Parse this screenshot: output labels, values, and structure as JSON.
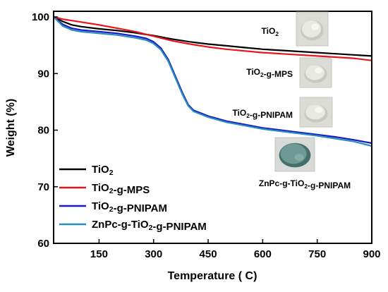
{
  "chart_data": {
    "type": "line",
    "title": "",
    "xlabel": "Temperature ( C)",
    "ylabel": "Weight (%)",
    "xlim": [
      25,
      900
    ],
    "ylim": [
      60,
      101
    ],
    "x_ticks": [
      150,
      300,
      450,
      600,
      750,
      900
    ],
    "x_tick_labels": [
      "150",
      "300",
      "450",
      "600",
      "750",
      "900"
    ],
    "y_ticks": [
      60,
      70,
      80,
      90,
      100
    ],
    "y_tick_labels": [
      "60",
      "70",
      "80",
      "90",
      "100"
    ],
    "grid": false,
    "legend_position": "bottom-left",
    "series": [
      {
        "name": "TiO2",
        "color": "#000000",
        "points": [
          [
            25,
            100
          ],
          [
            50,
            99.2
          ],
          [
            75,
            98.6
          ],
          [
            100,
            98.3
          ],
          [
            150,
            97.9
          ],
          [
            200,
            97.6
          ],
          [
            250,
            97.2
          ],
          [
            300,
            96.7
          ],
          [
            350,
            96.1
          ],
          [
            400,
            95.6
          ],
          [
            450,
            95.2
          ],
          [
            500,
            94.9
          ],
          [
            550,
            94.6
          ],
          [
            600,
            94.3
          ],
          [
            650,
            94.1
          ],
          [
            700,
            93.9
          ],
          [
            750,
            93.7
          ],
          [
            800,
            93.5
          ],
          [
            850,
            93.3
          ],
          [
            900,
            93.1
          ]
        ]
      },
      {
        "name": "TiO2-g-MPS",
        "color": "#e8141b",
        "points": [
          [
            25,
            100
          ],
          [
            50,
            99.6
          ],
          [
            100,
            99.1
          ],
          [
            150,
            98.6
          ],
          [
            200,
            98.0
          ],
          [
            250,
            97.4
          ],
          [
            300,
            96.6
          ],
          [
            350,
            95.8
          ],
          [
            400,
            95.2
          ],
          [
            450,
            94.7
          ],
          [
            500,
            94.3
          ],
          [
            550,
            94.0
          ],
          [
            600,
            93.7
          ],
          [
            650,
            93.5
          ],
          [
            700,
            93.3
          ],
          [
            750,
            93.1
          ],
          [
            800,
            92.9
          ],
          [
            850,
            92.7
          ],
          [
            900,
            92.3
          ]
        ]
      },
      {
        "name": "TiO2-g-PNIPAM",
        "color": "#1a1acc",
        "points": [
          [
            25,
            100
          ],
          [
            50,
            98.7
          ],
          [
            75,
            98.0
          ],
          [
            100,
            97.7
          ],
          [
            150,
            97.4
          ],
          [
            200,
            97.1
          ],
          [
            250,
            96.6
          ],
          [
            280,
            96.2
          ],
          [
            300,
            95.6
          ],
          [
            320,
            94.5
          ],
          [
            340,
            92.5
          ],
          [
            360,
            89.5
          ],
          [
            380,
            86.5
          ],
          [
            395,
            84.5
          ],
          [
            410,
            83.5
          ],
          [
            430,
            83.0
          ],
          [
            450,
            82.5
          ],
          [
            500,
            81.6
          ],
          [
            550,
            81.0
          ],
          [
            600,
            80.4
          ],
          [
            650,
            80.0
          ],
          [
            700,
            79.6
          ],
          [
            750,
            79.2
          ],
          [
            800,
            78.8
          ],
          [
            850,
            78.3
          ],
          [
            900,
            77.7
          ]
        ]
      },
      {
        "name": "ZnPc-g-TiO2-g-PNIPAM",
        "color": "#2a8fb8",
        "points": [
          [
            25,
            100
          ],
          [
            50,
            98.4
          ],
          [
            75,
            97.7
          ],
          [
            100,
            97.4
          ],
          [
            150,
            97.1
          ],
          [
            200,
            96.8
          ],
          [
            250,
            96.3
          ],
          [
            280,
            95.9
          ],
          [
            300,
            95.3
          ],
          [
            320,
            94.2
          ],
          [
            340,
            92.2
          ],
          [
            360,
            89.2
          ],
          [
            380,
            86.2
          ],
          [
            395,
            84.3
          ],
          [
            410,
            83.3
          ],
          [
            430,
            82.8
          ],
          [
            450,
            82.3
          ],
          [
            500,
            81.4
          ],
          [
            550,
            80.8
          ],
          [
            600,
            80.2
          ],
          [
            650,
            79.8
          ],
          [
            700,
            79.4
          ],
          [
            750,
            79.0
          ],
          [
            800,
            78.5
          ],
          [
            850,
            78.0
          ],
          [
            900,
            77.2
          ]
        ]
      }
    ],
    "legend_entries": [
      "TiO2",
      "TiO2-g-MPS",
      "TiO2-g-PNIPAM",
      "ZnPc-g-TiO2-g-PNIPAM"
    ],
    "inset_labels": [
      "TiO2",
      "TiO2-g-MPS",
      "TiO2-g-PNIPAM",
      "ZnPc-g-TiO2-g-PNIPAM"
    ]
  },
  "colors": {
    "axis": "#000000",
    "powder_white": "#e9e9e4",
    "powder_shadow": "#c9c9c2",
    "powder_teal": "#6f9a93",
    "powder_teal_dark": "#456f6a"
  }
}
